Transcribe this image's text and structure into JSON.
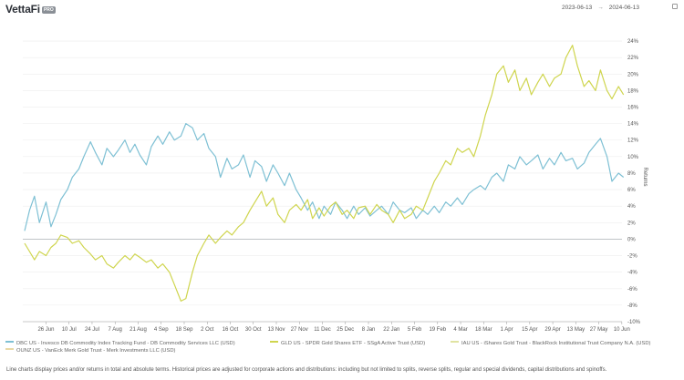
{
  "header": {
    "logo": "VettaFi",
    "logo_badge": "PRO",
    "start_date": "2023-06-13",
    "arrow": "→",
    "end_date": "2024-06-13"
  },
  "chart_data": {
    "type": "line",
    "ylabel": "Returns",
    "ylim": [
      -10,
      25
    ],
    "y_ticks": [
      -10,
      -8,
      -6,
      -4,
      -2,
      0,
      2,
      4,
      6,
      8,
      10,
      12,
      14,
      16,
      18,
      20,
      22,
      24
    ],
    "y_tick_labels": [
      "-10%",
      "-8%",
      "-6%",
      "-4%",
      "-2%",
      "0%",
      "2%",
      "4%",
      "6%",
      "8%",
      "10%",
      "12%",
      "14%",
      "16%",
      "18%",
      "20%",
      "22%",
      "24%"
    ],
    "x_tick_labels": [
      "26 Jun",
      "10 Jul",
      "24 Jul",
      "7 Aug",
      "21 Aug",
      "4 Sep",
      "18 Sep",
      "2 Oct",
      "16 Oct",
      "30 Oct",
      "13 Nov",
      "27 Nov",
      "11 Dec",
      "25 Dec",
      "8 Jan",
      "22 Jan",
      "5 Feb",
      "19 Feb",
      "4 Mar",
      "18 Mar",
      "1 Apr",
      "15 Apr",
      "29 Apr",
      "13 May",
      "27 May",
      "10 Jun"
    ],
    "series": [
      {
        "name": "DBC US - Invesco DB Commodity Index Tracking Fund - DB Commodity Services LLC (USD)",
        "color": "#7ec0d4",
        "x_days": [
          0,
          3,
          6,
          9,
          13,
          16,
          19,
          22,
          26,
          29,
          33,
          36,
          40,
          43,
          47,
          50,
          54,
          57,
          61,
          64,
          67,
          70,
          74,
          77,
          81,
          84,
          88,
          91,
          95,
          98,
          102,
          105,
          109,
          112,
          116,
          119,
          123,
          126,
          130,
          133,
          137,
          140,
          144,
          147,
          151,
          154,
          158,
          161,
          165,
          168,
          172,
          175,
          179,
          182,
          186,
          189,
          193,
          196,
          200,
          203,
          207,
          210,
          214,
          217,
          221,
          224,
          228,
          231,
          235,
          238,
          242,
          245,
          249,
          252,
          256,
          259,
          263,
          266,
          270,
          273,
          277,
          280,
          284,
          287,
          291,
          294,
          298,
          301,
          305,
          308,
          312,
          315,
          319,
          322,
          326,
          329,
          333,
          336,
          340,
          343,
          347,
          350,
          354,
          357,
          361,
          364
        ],
        "values": [
          1.0,
          3.5,
          5.2,
          2.0,
          4.5,
          1.5,
          3.0,
          4.8,
          6.0,
          7.5,
          8.5,
          10.0,
          11.8,
          10.5,
          9.0,
          11.0,
          10.0,
          10.8,
          12.0,
          10.5,
          11.5,
          10.2,
          9.0,
          11.2,
          12.5,
          11.5,
          13.0,
          12.0,
          12.5,
          14.0,
          13.5,
          12.0,
          12.8,
          11.0,
          10.0,
          7.5,
          9.8,
          8.5,
          9.0,
          10.2,
          7.5,
          9.5,
          8.8,
          7.0,
          9.0,
          8.0,
          6.5,
          8.0,
          6.0,
          5.0,
          3.5,
          4.5,
          2.5,
          4.0,
          3.0,
          4.5,
          3.5,
          2.5,
          4.0,
          3.0,
          3.8,
          2.8,
          3.5,
          4.0,
          3.0,
          4.5,
          3.5,
          3.2,
          3.8,
          2.5,
          3.5,
          3.0,
          4.0,
          3.2,
          4.5,
          4.0,
          5.0,
          4.2,
          5.5,
          6.0,
          6.5,
          6.0,
          7.5,
          8.0,
          7.0,
          9.0,
          8.5,
          10.0,
          9.0,
          9.5,
          10.2,
          8.5,
          9.8,
          9.0,
          10.5,
          9.5,
          9.8,
          8.5,
          9.2,
          10.5,
          11.5,
          12.2,
          10.0,
          7.0,
          8.0,
          7.5
        ]
      },
      {
        "name": "GLD US - SPDR Gold Shares ETF - SSgA Active Trust (USD)",
        "color": "#cfd54e",
        "x_days": [
          0,
          3,
          6,
          9,
          13,
          16,
          19,
          22,
          26,
          29,
          33,
          36,
          40,
          43,
          47,
          50,
          54,
          57,
          61,
          64,
          67,
          70,
          74,
          77,
          81,
          84,
          88,
          91,
          95,
          98,
          102,
          105,
          109,
          112,
          116,
          119,
          123,
          126,
          130,
          133,
          137,
          140,
          144,
          147,
          151,
          154,
          158,
          161,
          165,
          168,
          172,
          175,
          179,
          182,
          186,
          189,
          193,
          196,
          200,
          203,
          207,
          210,
          214,
          217,
          221,
          224,
          228,
          231,
          235,
          238,
          242,
          245,
          249,
          252,
          256,
          259,
          263,
          266,
          270,
          273,
          277,
          280,
          284,
          287,
          291,
          294,
          298,
          301,
          305,
          308,
          312,
          315,
          319,
          322,
          326,
          329,
          333,
          336,
          340,
          343,
          347,
          350,
          354,
          357,
          361,
          364
        ],
        "values": [
          -0.5,
          -1.5,
          -2.5,
          -1.5,
          -2.0,
          -1.0,
          -0.5,
          0.5,
          0.2,
          -0.5,
          -0.2,
          -1.0,
          -1.8,
          -2.5,
          -2.0,
          -3.0,
          -3.5,
          -2.8,
          -2.0,
          -2.5,
          -1.8,
          -2.2,
          -2.8,
          -2.5,
          -3.5,
          -3.0,
          -4.0,
          -5.5,
          -7.5,
          -7.2,
          -4.0,
          -2.0,
          -0.5,
          0.5,
          -0.5,
          0.2,
          1.0,
          0.5,
          1.5,
          2.0,
          3.5,
          4.5,
          5.8,
          4.0,
          5.0,
          3.0,
          2.0,
          3.5,
          4.2,
          3.5,
          4.8,
          2.5,
          3.8,
          2.8,
          4.0,
          4.5,
          3.0,
          3.5,
          2.5,
          3.8,
          4.0,
          3.0,
          4.2,
          3.5,
          3.0,
          2.0,
          3.5,
          2.5,
          3.0,
          4.0,
          3.5,
          5.0,
          7.0,
          8.0,
          9.5,
          9.0,
          11.0,
          10.5,
          11.0,
          10.0,
          12.5,
          15.0,
          17.5,
          20.0,
          21.0,
          19.0,
          20.5,
          18.0,
          19.5,
          17.5,
          19.0,
          20.0,
          18.5,
          19.5,
          20.0,
          22.0,
          23.5,
          21.0,
          18.5,
          19.2,
          18.0,
          20.5,
          18.0,
          17.0,
          18.5,
          17.5
        ]
      }
    ],
    "legend": [
      {
        "label": "DBC US - Invesco DB Commodity Index Tracking Fund - DB Commodity Services LLC (USD)",
        "color": "#7ec0d4"
      },
      {
        "label": "GLD US - SPDR Gold Shares ETF - SSgA Active Trust (USD)",
        "color": "#cfd54e"
      },
      {
        "label": "IAU US - iShares Gold Trust - BlackRock Institutional Trust Company N.A. (USD)",
        "color": "#e0e3a2"
      },
      {
        "label": "OUNZ US - VanEck Merk Gold Trust - Merk Investments LLC (USD)",
        "color": "#e9d9a6"
      }
    ]
  },
  "footnote": "Line charts display prices and/or returns in total and absolute terms. Historical prices are adjusted for corporate actions and distributions: including but not limited to splits, reverse splits, regular and special dividends, capital distributions and spinoffs."
}
